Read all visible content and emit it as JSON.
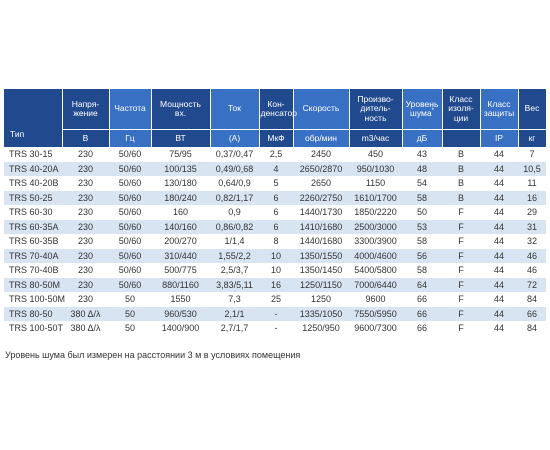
{
  "headers": [
    {
      "label": "Тип",
      "unit": ""
    },
    {
      "label": "Напря-\nжение",
      "unit": "В"
    },
    {
      "label": "Частота",
      "unit": "Гц"
    },
    {
      "label": "Мощность\nвх.",
      "unit": "ВТ"
    },
    {
      "label": "Ток",
      "unit": "(А)"
    },
    {
      "label": "Кон-\nденсатор",
      "unit": "МкФ"
    },
    {
      "label": "Скорость",
      "unit": "обр/мин"
    },
    {
      "label": "Произво-\nдитель-\nность",
      "unit": "m3/час"
    },
    {
      "label": "Уровень\nшума*",
      "unit": "дБ"
    },
    {
      "label": "Класс\nизоля-\nции",
      "unit": ""
    },
    {
      "label": "Класс\nзащиты",
      "unit": "IP"
    },
    {
      "label": "Вес",
      "unit": "кг"
    }
  ],
  "rows": [
    [
      "TRS 30-15",
      "230",
      "50/60",
      "75/95",
      "0,37/0,47",
      "2,5",
      "2450",
      "450",
      "43",
      "B",
      "44",
      "7"
    ],
    [
      "TRS 40-20A",
      "230",
      "50/60",
      "100/135",
      "0,49/0,68",
      "4",
      "2650/2870",
      "950/1030",
      "48",
      "B",
      "44",
      "10,5"
    ],
    [
      "TRS 40-20B",
      "230",
      "50/60",
      "130/180",
      "0,64/0,9",
      "5",
      "2650",
      "1150",
      "54",
      "B",
      "44",
      "11"
    ],
    [
      "TRS 50-25",
      "230",
      "50/60",
      "180/240",
      "0,82/1,17",
      "6",
      "2260/2750",
      "1610/1700",
      "58",
      "B",
      "44",
      "16"
    ],
    [
      "TRS 60-30",
      "230",
      "50/60",
      "160",
      "0,9",
      "6",
      "1440/1730",
      "1850/2220",
      "50",
      "F",
      "44",
      "29"
    ],
    [
      "TRS 60-35A",
      "230",
      "50/60",
      "140/160",
      "0,86/0,82",
      "6",
      "1410/1680",
      "2500/3000",
      "53",
      "F",
      "44",
      "31"
    ],
    [
      "TRS 60-35B",
      "230",
      "50/60",
      "200/270",
      "1/1,4",
      "8",
      "1440/1680",
      "3300/3900",
      "58",
      "F",
      "44",
      "32"
    ],
    [
      "TRS 70-40A",
      "230",
      "50/60",
      "310/440",
      "1,55/2,2",
      "10",
      "1350/1550",
      "4000/4600",
      "56",
      "F",
      "44",
      "46"
    ],
    [
      "TRS 70-40B",
      "230",
      "50/60",
      "500/775",
      "2,5/3,7",
      "10",
      "1350/1450",
      "5400/5800",
      "58",
      "F",
      "44",
      "46"
    ],
    [
      "TRS 80-50M",
      "230",
      "50/60",
      "880/1160",
      "3,83/5,11",
      "16",
      "1250/1150",
      "7000/6440",
      "64",
      "F",
      "44",
      "72"
    ],
    [
      "TRS 100-50M",
      "230",
      "50",
      "1550",
      "7,3",
      "25",
      "1250",
      "9600",
      "66",
      "F",
      "44",
      "84"
    ],
    [
      "TRS 80-50",
      "380 Δ/λ",
      "50",
      "960/530",
      "2,1/1",
      "-",
      "1335/1050",
      "7550/5950",
      "66",
      "F",
      "44",
      "66"
    ],
    [
      "TRS 100-50T",
      "380 Δ/λ",
      "50",
      "1400/900",
      "2,7/1,7",
      "-",
      "1250/950",
      "9600/7300",
      "66",
      "F",
      "44",
      "84"
    ]
  ],
  "note": "Уровень шума был измерен на расстоянии 3 м в условиях помещения",
  "colors": {
    "header_dark": "#214a8e",
    "header_light": "#3870c4",
    "row_stripe": "#d9e4f3"
  }
}
